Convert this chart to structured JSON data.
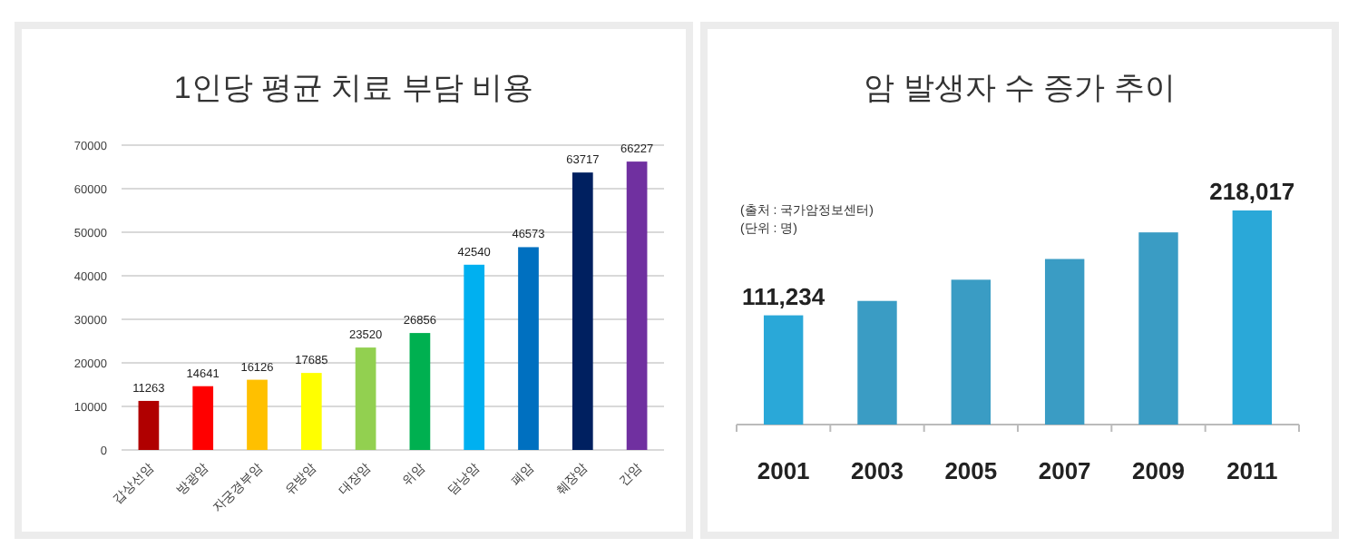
{
  "chart_data": [
    {
      "type": "bar",
      "title": "1인당 평균 치료 부담 비용",
      "categories": [
        "갑상선암",
        "방광암",
        "자궁경부암",
        "유방암",
        "대장암",
        "위암",
        "담낭암",
        "폐암",
        "췌장암",
        "간암"
      ],
      "values": [
        11263,
        14641,
        16126,
        17685,
        23520,
        26856,
        42540,
        46573,
        63717,
        66227
      ],
      "colors": [
        "#b00000",
        "#ff0000",
        "#ffc000",
        "#ffff00",
        "#92d050",
        "#00b050",
        "#00b0f0",
        "#0070c0",
        "#002060",
        "#7030a0"
      ],
      "ylim": [
        0,
        70000
      ],
      "yticks": [
        0,
        10000,
        20000,
        30000,
        40000,
        50000,
        60000,
        70000
      ],
      "grid": "y",
      "data_labels": true
    },
    {
      "type": "bar",
      "title": "암 발생자 수 증가 추이",
      "categories": [
        "2001",
        "2003",
        "2005",
        "2007",
        "2009",
        "2011"
      ],
      "values": [
        111234,
        125900,
        147500,
        168600,
        195700,
        218017
      ],
      "value_labels": [
        "111,234",
        null,
        null,
        null,
        null,
        "218,017"
      ],
      "colors": [
        "#2aa8d8",
        "#3a9cc4",
        "#3a9cc4",
        "#3a9cc4",
        "#3a9cc4",
        "#2aa8d8"
      ],
      "annotations": [
        "(출처 : 국가암정보센터)",
        "(단위 : 명)"
      ]
    }
  ]
}
